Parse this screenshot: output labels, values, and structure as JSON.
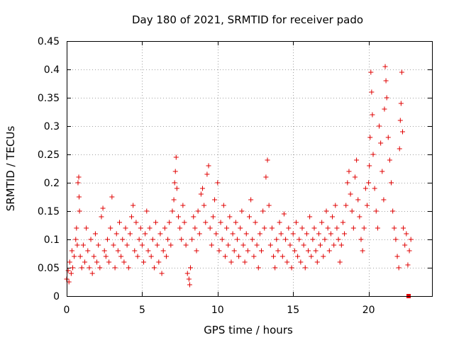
{
  "chart_data": {
    "type": "scatter",
    "title": "Day 180 of 2021, SRMTID for receiver pado",
    "xlabel": "GPS time / hours",
    "ylabel": "SRMTID / TECUs",
    "xlim": [
      0,
      24.2
    ],
    "ylim": [
      0,
      0.45
    ],
    "xticks": [
      0,
      5,
      10,
      15,
      20
    ],
    "xtick_labels": [
      "0",
      "5",
      "10",
      "15",
      "20"
    ],
    "yticks": [
      0,
      0.05,
      0.1,
      0.15,
      0.2,
      0.25,
      0.3,
      0.35,
      0.4,
      0.45
    ],
    "ytick_labels": [
      "0",
      "0.05",
      "0.1",
      "0.15",
      "0.2",
      "0.25",
      "0.3",
      "0.35",
      "0.4",
      "0.45"
    ],
    "grid": true,
    "marker": "plus",
    "color": "#e00000",
    "series": [
      {
        "name": "SRMTID",
        "points": [
          [
            0.0,
            0.03
          ],
          [
            0.1,
            0.045
          ],
          [
            0.15,
            0.025
          ],
          [
            0.2,
            0.06
          ],
          [
            0.3,
            0.04
          ],
          [
            0.35,
            0.08
          ],
          [
            0.4,
            0.05
          ],
          [
            0.5,
            0.07
          ],
          [
            0.6,
            0.1
          ],
          [
            0.65,
            0.12
          ],
          [
            0.7,
            0.09
          ],
          [
            0.75,
            0.2
          ],
          [
            0.8,
            0.21
          ],
          [
            0.82,
            0.175
          ],
          [
            0.85,
            0.15
          ],
          [
            0.9,
            0.07
          ],
          [
            1.0,
            0.05
          ],
          [
            1.1,
            0.09
          ],
          [
            1.2,
            0.06
          ],
          [
            1.3,
            0.12
          ],
          [
            1.4,
            0.08
          ],
          [
            1.5,
            0.05
          ],
          [
            1.6,
            0.1
          ],
          [
            1.7,
            0.04
          ],
          [
            1.8,
            0.07
          ],
          [
            1.9,
            0.11
          ],
          [
            2.0,
            0.06
          ],
          [
            2.1,
            0.09
          ],
          [
            2.2,
            0.05
          ],
          [
            2.3,
            0.14
          ],
          [
            2.4,
            0.155
          ],
          [
            2.5,
            0.08
          ],
          [
            2.6,
            0.07
          ],
          [
            2.7,
            0.1
          ],
          [
            2.8,
            0.06
          ],
          [
            2.9,
            0.12
          ],
          [
            3.0,
            0.175
          ],
          [
            3.1,
            0.09
          ],
          [
            3.2,
            0.05
          ],
          [
            3.3,
            0.11
          ],
          [
            3.4,
            0.08
          ],
          [
            3.5,
            0.13
          ],
          [
            3.6,
            0.07
          ],
          [
            3.7,
            0.1
          ],
          [
            3.8,
            0.06
          ],
          [
            3.9,
            0.12
          ],
          [
            4.0,
            0.09
          ],
          [
            4.1,
            0.05
          ],
          [
            4.2,
            0.11
          ],
          [
            4.3,
            0.14
          ],
          [
            4.4,
            0.16
          ],
          [
            4.5,
            0.08
          ],
          [
            4.6,
            0.13
          ],
          [
            4.7,
            0.07
          ],
          [
            4.8,
            0.1
          ],
          [
            4.9,
            0.12
          ],
          [
            5.0,
            0.09
          ],
          [
            5.1,
            0.06
          ],
          [
            5.2,
            0.11
          ],
          [
            5.3,
            0.15
          ],
          [
            5.4,
            0.08
          ],
          [
            5.5,
            0.12
          ],
          [
            5.6,
            0.07
          ],
          [
            5.7,
            0.1
          ],
          [
            5.8,
            0.05
          ],
          [
            5.9,
            0.13
          ],
          [
            6.0,
            0.09
          ],
          [
            6.1,
            0.06
          ],
          [
            6.2,
            0.11
          ],
          [
            6.3,
            0.04
          ],
          [
            6.4,
            0.08
          ],
          [
            6.5,
            0.12
          ],
          [
            6.6,
            0.07
          ],
          [
            6.7,
            0.1
          ],
          [
            6.8,
            0.13
          ],
          [
            6.9,
            0.09
          ],
          [
            7.0,
            0.15
          ],
          [
            7.1,
            0.17
          ],
          [
            7.15,
            0.2
          ],
          [
            7.2,
            0.22
          ],
          [
            7.25,
            0.245
          ],
          [
            7.3,
            0.19
          ],
          [
            7.4,
            0.14
          ],
          [
            7.5,
            0.12
          ],
          [
            7.6,
            0.1
          ],
          [
            7.7,
            0.16
          ],
          [
            7.8,
            0.13
          ],
          [
            7.9,
            0.09
          ],
          [
            8.0,
            0.04
          ],
          [
            8.1,
            0.03
          ],
          [
            8.15,
            0.02
          ],
          [
            8.2,
            0.05
          ],
          [
            8.3,
            0.1
          ],
          [
            8.4,
            0.14
          ],
          [
            8.5,
            0.12
          ],
          [
            8.6,
            0.08
          ],
          [
            8.7,
            0.15
          ],
          [
            8.8,
            0.11
          ],
          [
            8.9,
            0.18
          ],
          [
            9.0,
            0.19
          ],
          [
            9.1,
            0.16
          ],
          [
            9.2,
            0.13
          ],
          [
            9.3,
            0.215
          ],
          [
            9.4,
            0.23
          ],
          [
            9.5,
            0.12
          ],
          [
            9.6,
            0.09
          ],
          [
            9.7,
            0.14
          ],
          [
            9.8,
            0.17
          ],
          [
            9.9,
            0.11
          ],
          [
            10.0,
            0.2
          ],
          [
            10.1,
            0.08
          ],
          [
            10.2,
            0.13
          ],
          [
            10.3,
            0.1
          ],
          [
            10.4,
            0.16
          ],
          [
            10.5,
            0.07
          ],
          [
            10.6,
            0.12
          ],
          [
            10.7,
            0.09
          ],
          [
            10.8,
            0.14
          ],
          [
            10.9,
            0.06
          ],
          [
            11.0,
            0.11
          ],
          [
            11.1,
            0.08
          ],
          [
            11.2,
            0.13
          ],
          [
            11.3,
            0.1
          ],
          [
            11.4,
            0.07
          ],
          [
            11.5,
            0.12
          ],
          [
            11.6,
            0.15
          ],
          [
            11.7,
            0.09
          ],
          [
            11.8,
            0.06
          ],
          [
            11.9,
            0.11
          ],
          [
            12.0,
            0.08
          ],
          [
            12.1,
            0.14
          ],
          [
            12.2,
            0.17
          ],
          [
            12.3,
            0.1
          ],
          [
            12.4,
            0.07
          ],
          [
            12.5,
            0.13
          ],
          [
            12.6,
            0.09
          ],
          [
            12.7,
            0.05
          ],
          [
            12.8,
            0.11
          ],
          [
            12.9,
            0.08
          ],
          [
            13.0,
            0.15
          ],
          [
            13.1,
            0.12
          ],
          [
            13.2,
            0.21
          ],
          [
            13.3,
            0.24
          ],
          [
            13.4,
            0.16
          ],
          [
            13.5,
            0.09
          ],
          [
            13.6,
            0.12
          ],
          [
            13.7,
            0.07
          ],
          [
            13.8,
            0.05
          ],
          [
            13.9,
            0.1
          ],
          [
            14.0,
            0.08
          ],
          [
            14.1,
            0.13
          ],
          [
            14.2,
            0.11
          ],
          [
            14.3,
            0.07
          ],
          [
            14.4,
            0.145
          ],
          [
            14.5,
            0.1
          ],
          [
            14.6,
            0.06
          ],
          [
            14.7,
            0.12
          ],
          [
            14.8,
            0.09
          ],
          [
            14.9,
            0.05
          ],
          [
            15.0,
            0.11
          ],
          [
            15.1,
            0.08
          ],
          [
            15.2,
            0.13
          ],
          [
            15.3,
            0.07
          ],
          [
            15.4,
            0.1
          ],
          [
            15.5,
            0.06
          ],
          [
            15.6,
            0.12
          ],
          [
            15.7,
            0.09
          ],
          [
            15.8,
            0.05
          ],
          [
            15.9,
            0.11
          ],
          [
            16.0,
            0.08
          ],
          [
            16.1,
            0.14
          ],
          [
            16.2,
            0.07
          ],
          [
            16.3,
            0.1
          ],
          [
            16.4,
            0.12
          ],
          [
            16.5,
            0.08
          ],
          [
            16.6,
            0.06
          ],
          [
            16.7,
            0.11
          ],
          [
            16.8,
            0.09
          ],
          [
            16.9,
            0.13
          ],
          [
            17.0,
            0.07
          ],
          [
            17.1,
            0.1
          ],
          [
            17.2,
            0.15
          ],
          [
            17.3,
            0.12
          ],
          [
            17.4,
            0.08
          ],
          [
            17.5,
            0.11
          ],
          [
            17.6,
            0.14
          ],
          [
            17.7,
            0.09
          ],
          [
            17.8,
            0.16
          ],
          [
            17.9,
            0.12
          ],
          [
            18.0,
            0.1
          ],
          [
            18.1,
            0.06
          ],
          [
            18.2,
            0.09
          ],
          [
            18.3,
            0.13
          ],
          [
            18.4,
            0.11
          ],
          [
            18.5,
            0.16
          ],
          [
            18.6,
            0.2
          ],
          [
            18.7,
            0.22
          ],
          [
            18.8,
            0.18
          ],
          [
            18.9,
            0.15
          ],
          [
            19.0,
            0.12
          ],
          [
            19.1,
            0.21
          ],
          [
            19.2,
            0.24
          ],
          [
            19.3,
            0.17
          ],
          [
            19.4,
            0.14
          ],
          [
            19.5,
            0.1
          ],
          [
            19.6,
            0.08
          ],
          [
            19.7,
            0.12
          ],
          [
            19.8,
            0.19
          ],
          [
            19.9,
            0.16
          ],
          [
            20.0,
            0.2
          ],
          [
            20.05,
            0.23
          ],
          [
            20.1,
            0.28
          ],
          [
            20.15,
            0.395
          ],
          [
            20.2,
            0.36
          ],
          [
            20.25,
            0.32
          ],
          [
            20.3,
            0.25
          ],
          [
            20.4,
            0.19
          ],
          [
            20.5,
            0.15
          ],
          [
            20.6,
            0.12
          ],
          [
            20.7,
            0.3
          ],
          [
            20.8,
            0.27
          ],
          [
            20.9,
            0.22
          ],
          [
            21.0,
            0.17
          ],
          [
            21.05,
            0.33
          ],
          [
            21.1,
            0.405
          ],
          [
            21.15,
            0.38
          ],
          [
            21.2,
            0.35
          ],
          [
            21.3,
            0.28
          ],
          [
            21.4,
            0.24
          ],
          [
            21.5,
            0.2
          ],
          [
            21.6,
            0.15
          ],
          [
            21.7,
            0.12
          ],
          [
            21.8,
            0.1
          ],
          [
            21.9,
            0.07
          ],
          [
            22.0,
            0.05
          ],
          [
            22.05,
            0.26
          ],
          [
            22.1,
            0.31
          ],
          [
            22.15,
            0.34
          ],
          [
            22.2,
            0.395
          ],
          [
            22.25,
            0.29
          ],
          [
            22.3,
            0.12
          ],
          [
            22.4,
            0.09
          ],
          [
            22.5,
            0.11
          ],
          [
            22.6,
            0.055
          ],
          [
            22.7,
            0.08
          ],
          [
            22.8,
            0.1
          ],
          [
            22.65,
            0.0
          ]
        ]
      }
    ]
  }
}
